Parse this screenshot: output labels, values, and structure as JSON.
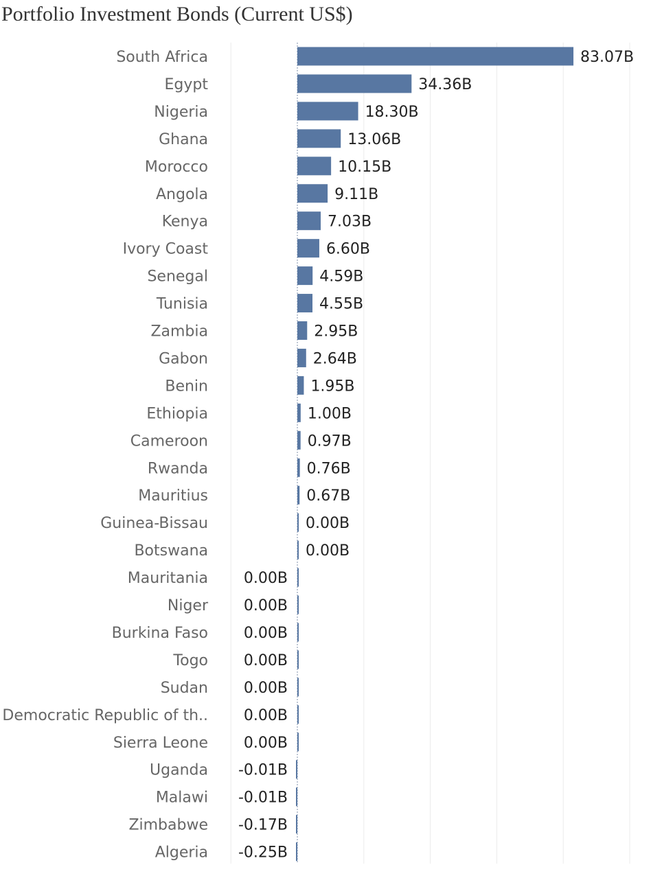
{
  "chart_data": {
    "type": "bar",
    "orientation": "horizontal",
    "title": "Portfolio Investment Bonds (Current US$)",
    "xlabel": "",
    "ylabel": "",
    "unit_suffix": "B",
    "bar_color": "#5877a2",
    "grid": true,
    "xlim": [
      -10,
      90
    ],
    "categories": [
      "South Africa",
      "Egypt",
      "Nigeria",
      "Ghana",
      "Morocco",
      "Angola",
      "Kenya",
      "Ivory Coast",
      "Senegal",
      "Tunisia",
      "Zambia",
      "Gabon",
      "Benin",
      "Ethiopia",
      "Cameroon",
      "Rwanda",
      "Mauritius",
      "Guinea-Bissau",
      "Botswana",
      "Mauritania",
      "Niger",
      "Burkina Faso",
      "Togo",
      "Sudan",
      "Democratic Republic of th..",
      "Sierra Leone",
      "Uganda",
      "Malawi",
      "Zimbabwe",
      "Algeria"
    ],
    "values": [
      83.07,
      34.36,
      18.3,
      13.06,
      10.15,
      9.11,
      7.03,
      6.6,
      4.59,
      4.55,
      2.95,
      2.64,
      1.95,
      1.0,
      0.97,
      0.76,
      0.67,
      0.0,
      0.0,
      0.0,
      0.0,
      0.0,
      0.0,
      0.0,
      0.0,
      0.0,
      -0.01,
      -0.01,
      -0.17,
      -0.25
    ],
    "value_labels": [
      "83.07B",
      "34.36B",
      "18.30B",
      "13.06B",
      "10.15B",
      "9.11B",
      "7.03B",
      "6.60B",
      "4.59B",
      "4.55B",
      "2.95B",
      "2.64B",
      "1.95B",
      "1.00B",
      "0.97B",
      "0.76B",
      "0.67B",
      "0.00B",
      "0.00B",
      "0.00B",
      "0.00B",
      "0.00B",
      "0.00B",
      "0.00B",
      "0.00B",
      "0.00B",
      "-0.01B",
      "-0.01B",
      "-0.17B",
      "-0.25B"
    ],
    "label_side": [
      "right",
      "right",
      "right",
      "right",
      "right",
      "right",
      "right",
      "right",
      "right",
      "right",
      "right",
      "right",
      "right",
      "right",
      "right",
      "right",
      "right",
      "right",
      "right",
      "left",
      "left",
      "left",
      "left",
      "left",
      "left",
      "left",
      "left",
      "left",
      "left",
      "left"
    ]
  }
}
